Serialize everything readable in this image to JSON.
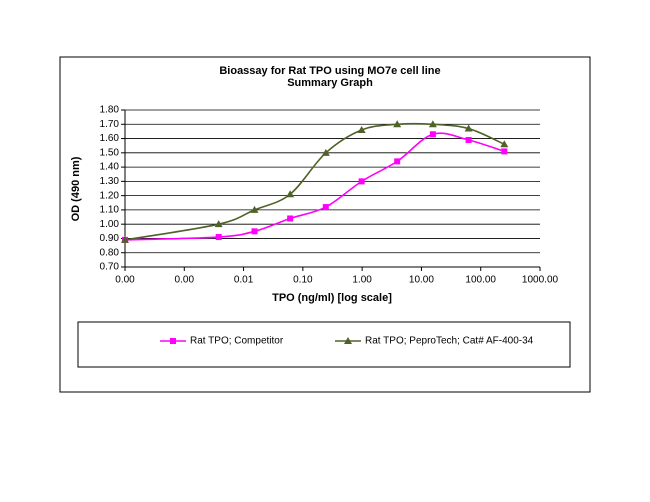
{
  "chart_data": {
    "type": "line",
    "title": "Bioassay for Rat TPO using MO7e cell line",
    "subtitle": "Summary Graph",
    "x_label": "TPO (ng/ml) [log scale]",
    "y_label": "OD (490 nm)",
    "xscale": "log",
    "smooth": true,
    "grid": true,
    "legend": "bottom",
    "x": [
      0.0001,
      0.0038,
      0.0153,
      0.061,
      0.244,
      0.98,
      3.9,
      15.6,
      62.5,
      250
    ],
    "series": [
      {
        "name": "Rat TPO; Competitor",
        "color": "#ff00ff",
        "marker": "square",
        "values": [
          0.89,
          0.91,
          0.95,
          1.04,
          1.12,
          1.3,
          1.44,
          1.63,
          1.59,
          1.51
        ]
      },
      {
        "name": "Rat TPO; PeproTech; Cat# AF-400-34",
        "color": "#4f6228",
        "marker": "triangle",
        "values": [
          0.89,
          1.0,
          1.1,
          1.21,
          1.5,
          1.66,
          1.7,
          1.7,
          1.67,
          1.56
        ]
      }
    ],
    "xlim": [
      0.0001,
      1000
    ],
    "xticks": [
      {
        "value": 0.0001,
        "label": "0.00"
      },
      {
        "value": 0.001,
        "label": "0.00"
      },
      {
        "value": 0.01,
        "label": "0.01"
      },
      {
        "value": 0.1,
        "label": "0.10"
      },
      {
        "value": 1,
        "label": "1.00"
      },
      {
        "value": 10,
        "label": "10.00"
      },
      {
        "value": 100,
        "label": "100.00"
      },
      {
        "value": 1000,
        "label": "1000.00"
      }
    ],
    "ylim": [
      0.7,
      1.8
    ],
    "yticks": [
      {
        "value": 0.7,
        "label": "0.70"
      },
      {
        "value": 0.8,
        "label": "0.80"
      },
      {
        "value": 0.9,
        "label": "0.90"
      },
      {
        "value": 1.0,
        "label": "1.00"
      },
      {
        "value": 1.1,
        "label": "1.10"
      },
      {
        "value": 1.2,
        "label": "1.20"
      },
      {
        "value": 1.3,
        "label": "1.30"
      },
      {
        "value": 1.4,
        "label": "1.40"
      },
      {
        "value": 1.5,
        "label": "1.50"
      },
      {
        "value": 1.6,
        "label": "1.60"
      },
      {
        "value": 1.7,
        "label": "1.70"
      },
      {
        "value": 1.8,
        "label": "1.80"
      }
    ]
  }
}
